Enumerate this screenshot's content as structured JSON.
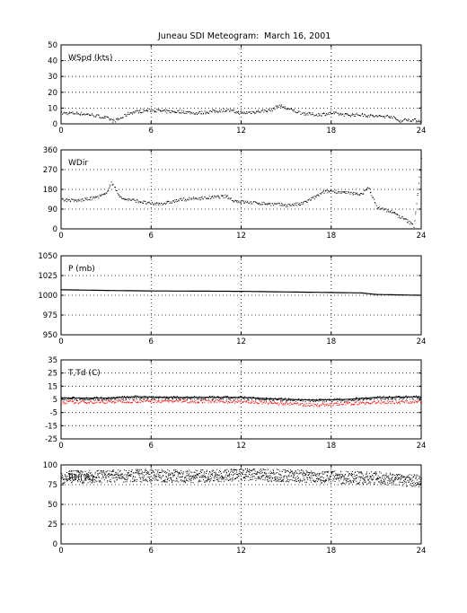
{
  "title": {
    "station": "Juneau SDI Meteogram:",
    "date": "March 16, 2001"
  },
  "colors": {
    "data": "#000000",
    "dewpoint": "#ff0000",
    "grid": "#000000",
    "background": "#ffffff"
  },
  "chart_data": [
    {
      "type": "scatter",
      "label": "WSpd (kts)",
      "xlim": [
        0,
        24
      ],
      "ylim": [
        0,
        50
      ],
      "xticks": [
        "0",
        "6",
        "12",
        "18",
        "24"
      ],
      "yticks": [
        "0",
        "10",
        "20",
        "30",
        "40",
        "50"
      ],
      "grid": true,
      "series": [
        {
          "x": [
            0,
            1,
            2,
            3,
            3.5,
            4,
            4.5,
            5,
            6,
            7,
            8,
            9,
            10,
            11,
            12,
            13,
            14,
            14.5,
            15,
            16,
            17,
            18,
            19,
            20,
            21,
            22,
            22.5,
            23,
            24
          ],
          "values": [
            7,
            7,
            6,
            4,
            2,
            4,
            7,
            8,
            9,
            8,
            8,
            7,
            8,
            9,
            7,
            8,
            9,
            12,
            10,
            7,
            6,
            7,
            6,
            6,
            5,
            5,
            2,
            3,
            2
          ]
        }
      ]
    },
    {
      "type": "scatter",
      "label": "WDir",
      "xlim": [
        0,
        24
      ],
      "ylim": [
        0,
        360
      ],
      "xticks": [
        "0",
        "6",
        "12",
        "18",
        "24"
      ],
      "yticks": [
        "0",
        "90",
        "180",
        "270",
        "360"
      ],
      "grid": true,
      "series": [
        {
          "x": [
            0,
            1,
            2,
            3,
            3.3,
            3.6,
            4,
            5,
            6,
            7,
            8,
            9,
            10,
            11,
            11.5,
            12,
            13,
            14,
            15,
            16,
            17,
            17.5,
            18,
            19,
            20,
            20.5,
            21,
            22,
            23,
            23.5,
            24
          ],
          "values": [
            135,
            130,
            140,
            160,
            215,
            185,
            140,
            130,
            115,
            120,
            135,
            140,
            145,
            150,
            130,
            125,
            120,
            115,
            110,
            115,
            150,
            170,
            175,
            165,
            160,
            190,
            100,
            80,
            40,
            15,
            320
          ]
        }
      ]
    },
    {
      "type": "line",
      "label": "P (mb)",
      "xlim": [
        0,
        24
      ],
      "ylim": [
        950,
        1050
      ],
      "xticks": [
        "0",
        "6",
        "12",
        "18",
        "24"
      ],
      "yticks": [
        "950",
        "975",
        "1000",
        "1025",
        "1050"
      ],
      "grid": true,
      "series": [
        {
          "x": [
            0,
            3.5,
            6,
            12,
            16,
            20,
            21,
            24
          ],
          "values": [
            1007,
            1006,
            1005.5,
            1005,
            1004,
            1003,
            1001,
            1000
          ]
        }
      ]
    },
    {
      "type": "scatter",
      "label": "T,Td (C)",
      "xlim": [
        0,
        24
      ],
      "ylim": [
        -25,
        35
      ],
      "xticks": [
        "0",
        "6",
        "12",
        "18",
        "24"
      ],
      "yticks": [
        "-25",
        "-15",
        "-5",
        "5",
        "15",
        "25",
        "35"
      ],
      "grid": true,
      "series": [
        {
          "name": "T",
          "x": [
            0,
            3,
            5,
            8,
            12,
            15,
            17,
            19,
            21,
            24
          ],
          "values": [
            6,
            6,
            7,
            6.5,
            6.5,
            5,
            4.5,
            5,
            6.5,
            7
          ]
        },
        {
          "name": "Td",
          "x": [
            0,
            3,
            5,
            8,
            12,
            15,
            17,
            19,
            21,
            24
          ],
          "values": [
            3,
            3.5,
            4,
            4,
            3.5,
            2,
            1,
            2,
            3,
            3.5
          ]
        }
      ]
    },
    {
      "type": "scatter",
      "label": "RH(%)",
      "xlim": [
        0,
        24
      ],
      "ylim": [
        0,
        100
      ],
      "xticks": [
        "0",
        "6",
        "12",
        "18",
        "24"
      ],
      "yticks": [
        "0",
        "25",
        "50",
        "75",
        "100"
      ],
      "grid": true,
      "series": [
        {
          "x": [
            0,
            3,
            6,
            9,
            12,
            15,
            18,
            21,
            24
          ],
          "values": [
            85,
            86,
            87,
            86,
            88,
            87,
            85,
            84,
            80
          ],
          "spread": 8
        }
      ]
    }
  ]
}
